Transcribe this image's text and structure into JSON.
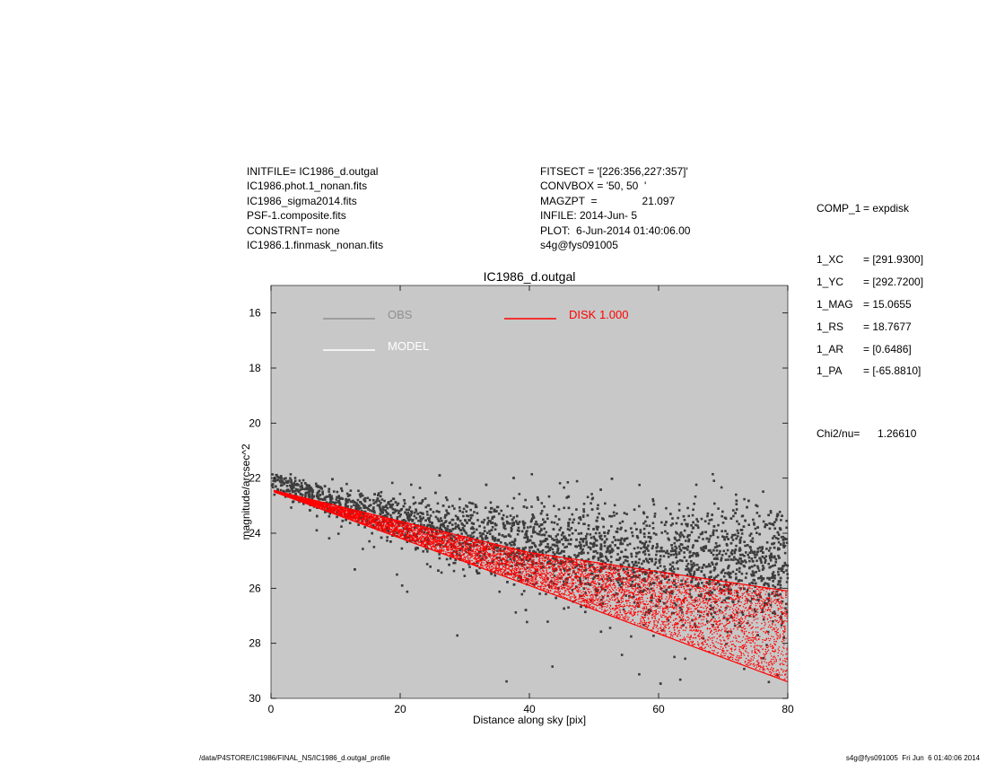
{
  "header_left": [
    "INITFILE= IC1986_d.outgal",
    "IC1986.phot.1_nonan.fits",
    "IC1986_sigma2014.fits",
    "PSF-1.composite.fits",
    "CONSTRNT= none",
    "IC1986.1.finmask_nonan.fits"
  ],
  "header_mid": [
    "FITSECT = '[226:356,227:357]'",
    "CONVBOX = '50, 50  '",
    "MAGZPT  =               21.097",
    "INFILE: 2014-Jun- 5",
    "PLOT:  6-Jun-2014 01:40:06.00",
    "s4g@fys091005"
  ],
  "params": {
    "comp": {
      "name": "COMP_1",
      "value": "= expdisk"
    },
    "items": [
      {
        "name": "1_XC",
        "value": "= [291.9300]"
      },
      {
        "name": "1_YC",
        "value": "= [292.7200]"
      },
      {
        "name": "1_MAG",
        "value": "= 15.0655"
      },
      {
        "name": "1_RS",
        "value": "= 18.7677"
      },
      {
        "name": "1_AR",
        "value": "= [0.6486]"
      },
      {
        "name": "1_PA",
        "value": "= [-65.8810]"
      }
    ],
    "chi": {
      "name": "Chi2/nu=",
      "value": "1.26610"
    }
  },
  "footer": {
    "left": "/data/P4STORE/IC1986/FINAL_NS/IC1986_d.outgal_profile",
    "right": "s4g@fys091005  Fri Jun  6 01:40:06 2014"
  },
  "colors": {
    "plot_bg": "#c8c8c8",
    "obs": "#3c3c3c",
    "obs_legend": "#909090",
    "model": "#ffffff",
    "disk": "#ff0000"
  },
  "chart_data": {
    "type": "scatter",
    "title": "IC1986_d.outgal",
    "xlabel": "Distance along sky [pix]",
    "ylabel": "magnitude/arcsec^2",
    "xlim": [
      0,
      80
    ],
    "ylim": [
      30,
      15
    ],
    "y_inverted": true,
    "grid": false,
    "xticks": [
      0,
      20,
      40,
      60,
      80
    ],
    "yticks": [
      16,
      18,
      20,
      22,
      24,
      26,
      28,
      30
    ],
    "legend": [
      {
        "label": "OBS",
        "color": "#909090"
      },
      {
        "label": "MODEL",
        "color": "#ffffff"
      },
      {
        "label": "DISK  1.000",
        "color": "#ff0000"
      }
    ],
    "series": [
      {
        "name": "OBS",
        "kind": "points",
        "center_line": [
          [
            0,
            22.1
          ],
          [
            10,
            22.9
          ],
          [
            20,
            23.6
          ],
          [
            40,
            24.4
          ],
          [
            60,
            25.0
          ],
          [
            80,
            25.3
          ]
        ],
        "spread": [
          [
            0,
            0.3
          ],
          [
            10,
            0.5
          ],
          [
            20,
            0.8
          ],
          [
            40,
            1.4
          ],
          [
            60,
            1.8
          ],
          [
            80,
            2.0
          ]
        ],
        "x_range": [
          0,
          80
        ]
      },
      {
        "name": "DISK  1.000",
        "kind": "wedge",
        "upper_edge": [
          [
            0.5,
            22.45
          ],
          [
            40,
            24.7
          ],
          [
            80,
            26.1
          ]
        ],
        "lower_edge": [
          [
            0.5,
            22.5
          ],
          [
            40,
            25.9
          ],
          [
            80,
            29.4
          ]
        ]
      }
    ]
  }
}
